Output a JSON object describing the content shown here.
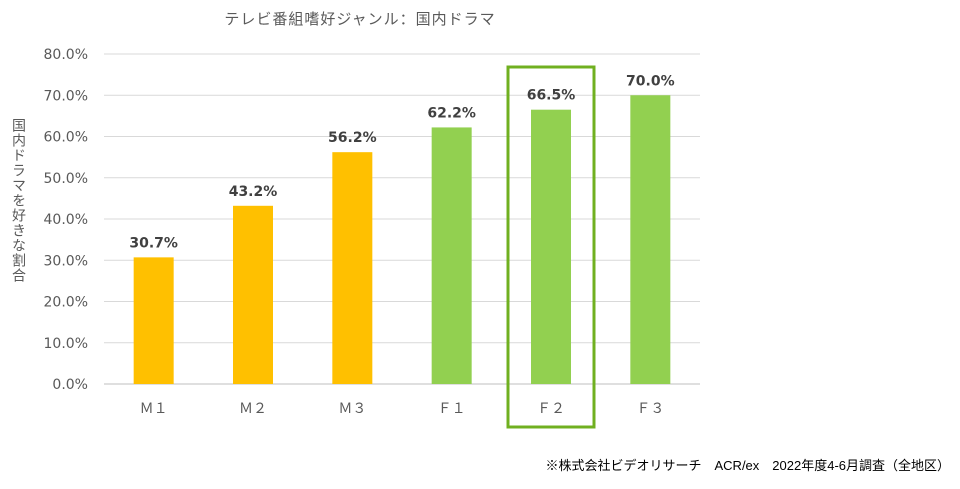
{
  "chart_data": {
    "type": "bar",
    "title": "テレビ番組嗜好ジャンル：国内ドラマ",
    "ylabel": "国内ドラマを好きな割合",
    "xlabel": "",
    "categories": [
      "Ｍ１",
      "Ｍ２",
      "Ｍ３",
      "Ｆ１",
      "Ｆ２",
      "Ｆ３"
    ],
    "values": [
      30.7,
      43.2,
      56.2,
      62.2,
      66.5,
      70.0
    ],
    "data_labels": [
      "30.7%",
      "43.2%",
      "56.2%",
      "62.2%",
      "66.5%",
      "70.0%"
    ],
    "bar_colors": [
      "#FFC000",
      "#FFC000",
      "#FFC000",
      "#92D050",
      "#92D050",
      "#92D050"
    ],
    "highlight_category": "Ｆ２",
    "highlight_color": "#70B020",
    "ylim": [
      0,
      80
    ],
    "yticks": [
      0,
      10,
      20,
      30,
      40,
      50,
      60,
      70,
      80
    ],
    "ytick_labels": [
      "0.0%",
      "10.0%",
      "20.0%",
      "30.0%",
      "40.0%",
      "50.0%",
      "60.0%",
      "70.0%",
      "80.0%"
    ],
    "grid": true,
    "legend": "none"
  },
  "footnote": "※株式会社ビデオリサーチ　ACR/ex　2022年度4-6月調査（全地区）"
}
